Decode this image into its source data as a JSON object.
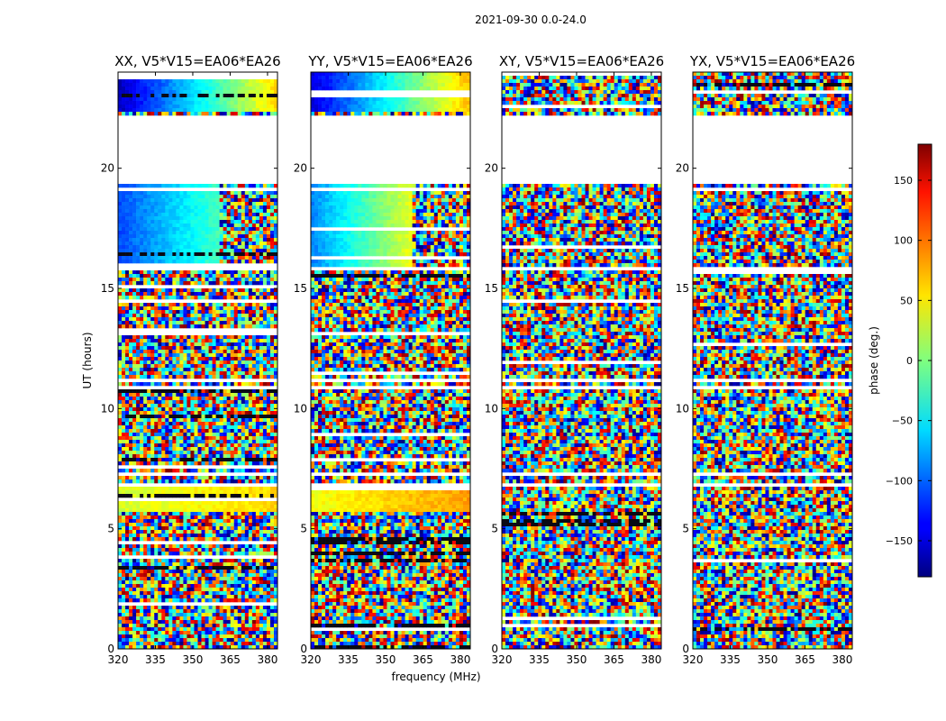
{
  "figure": {
    "suptitle": "2021-09-30 0.0-24.0",
    "xlabel": "frequency (MHz)",
    "ylabel": "UT (hours)",
    "colorbar_label": "phase (deg.)"
  },
  "chart_data": {
    "type": "heatmap",
    "colormap": "jet",
    "clim": [
      -180,
      180
    ],
    "colorbar_ticks": [
      -150,
      -100,
      -50,
      0,
      50,
      100,
      150
    ],
    "xlim": [
      320,
      384
    ],
    "ylim": [
      0,
      24
    ],
    "xticks": [
      320,
      335,
      350,
      365,
      380
    ],
    "yticks": [
      0,
      5,
      10,
      15,
      20
    ],
    "blank_bands_hours": [
      [
        19.3,
        22.2
      ],
      [
        15.75,
        15.95
      ],
      [
        11.05,
        11.2
      ],
      [
        10.85,
        10.95
      ],
      [
        7.2,
        7.4
      ],
      [
        6.8,
        6.9
      ]
    ],
    "panels": [
      {
        "title": "XX, V5*V15=EA06*EA26",
        "coherent_regions": [
          {
            "hours": [
              15.9,
              19.3
            ],
            "mhz": [
              320,
              361
            ],
            "phase_gradient_deg": [
              -110,
              -20
            ]
          },
          {
            "hours": [
              5.7,
              6.8
            ],
            "mhz": [
              320,
              384
            ],
            "phase_gradient_deg": [
              30,
              60
            ]
          },
          {
            "hours": [
              22.3,
              24
            ],
            "mhz": [
              320,
              384
            ],
            "phase_gradient_deg": [
              -160,
              60
            ]
          }
        ]
      },
      {
        "title": "YY, V5*V15=EA06*EA26",
        "coherent_regions": [
          {
            "hours": [
              15.9,
              19.3
            ],
            "mhz": [
              320,
              361
            ],
            "phase_gradient_deg": [
              -90,
              40
            ]
          },
          {
            "hours": [
              5.7,
              6.8
            ],
            "mhz": [
              320,
              384
            ],
            "phase_gradient_deg": [
              40,
              80
            ]
          },
          {
            "hours": [
              22.3,
              24
            ],
            "mhz": [
              320,
              384
            ],
            "phase_gradient_deg": [
              -150,
              70
            ]
          }
        ]
      },
      {
        "title": "XY, V5*V15=EA06*EA26",
        "coherent_regions": []
      },
      {
        "title": "YX, V5*V15=EA06*EA26",
        "coherent_regions": []
      }
    ]
  }
}
